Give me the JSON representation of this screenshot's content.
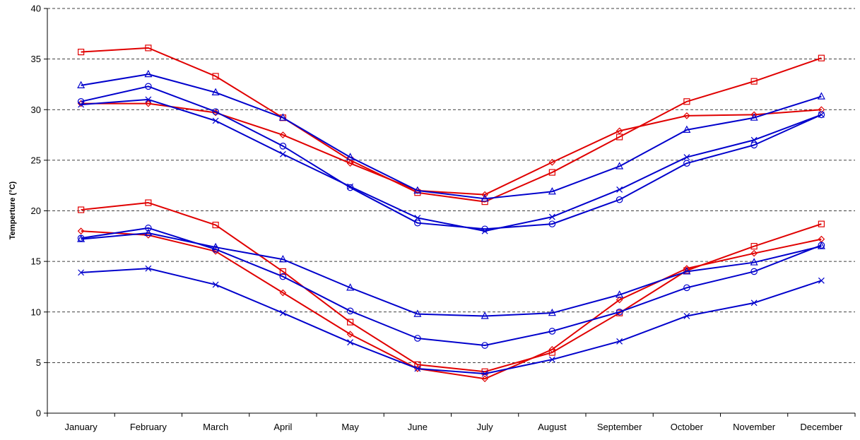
{
  "chart_data": {
    "type": "line",
    "title": "",
    "xlabel": "",
    "ylabel": "Temperture (°C)",
    "ylim": [
      0,
      40
    ],
    "yticks": [
      0,
      5,
      10,
      15,
      20,
      25,
      30,
      35,
      40
    ],
    "grid": "horizontal dashed",
    "legend": "none",
    "categories": [
      "January",
      "February",
      "March",
      "April",
      "May",
      "June",
      "July",
      "August",
      "September",
      "October",
      "November",
      "December"
    ],
    "series": [
      {
        "color": "#e00000",
        "marker": "square",
        "values": [
          35.7,
          36.1,
          33.3,
          29.2,
          25.0,
          21.8,
          20.9,
          23.8,
          27.3,
          30.8,
          32.8,
          35.1
        ]
      },
      {
        "color": "#e00000",
        "marker": "diamond",
        "values": [
          30.6,
          30.6,
          29.7,
          27.5,
          24.7,
          22.0,
          21.6,
          24.8,
          27.9,
          29.4,
          29.5,
          30.0
        ]
      },
      {
        "color": "#0000cc",
        "marker": "triangle",
        "values": [
          32.4,
          33.5,
          31.7,
          29.2,
          25.3,
          22.0,
          21.2,
          21.9,
          24.4,
          28.0,
          29.2,
          31.3
        ]
      },
      {
        "color": "#0000cc",
        "marker": "circle",
        "values": [
          30.8,
          32.3,
          29.8,
          26.4,
          22.3,
          18.8,
          18.2,
          18.7,
          21.1,
          24.7,
          26.5,
          29.5
        ]
      },
      {
        "color": "#0000cc",
        "marker": "x",
        "values": [
          30.5,
          31.0,
          28.9,
          25.6,
          22.4,
          19.3,
          18.0,
          19.4,
          22.1,
          25.3,
          27.0,
          29.5
        ]
      },
      {
        "color": "#e00000",
        "marker": "square",
        "values": [
          20.1,
          20.8,
          18.6,
          14.0,
          9.0,
          4.8,
          4.1,
          6.0,
          9.9,
          14.1,
          16.5,
          18.7
        ]
      },
      {
        "color": "#e00000",
        "marker": "diamond",
        "values": [
          18.0,
          17.6,
          16.0,
          11.9,
          7.8,
          4.4,
          3.4,
          6.3,
          11.2,
          14.3,
          15.8,
          17.2
        ]
      },
      {
        "color": "#0000cc",
        "marker": "triangle",
        "values": [
          17.2,
          17.8,
          16.4,
          15.2,
          12.4,
          9.8,
          9.6,
          9.9,
          11.7,
          14.0,
          14.9,
          16.5
        ]
      },
      {
        "color": "#0000cc",
        "marker": "circle",
        "values": [
          17.3,
          18.3,
          16.2,
          13.5,
          10.1,
          7.4,
          6.7,
          8.1,
          10.0,
          12.4,
          14.0,
          16.6
        ]
      },
      {
        "color": "#0000cc",
        "marker": "x",
        "values": [
          13.9,
          14.3,
          12.7,
          9.9,
          7.0,
          4.4,
          3.9,
          5.3,
          7.1,
          9.6,
          10.9,
          13.1
        ]
      }
    ]
  }
}
